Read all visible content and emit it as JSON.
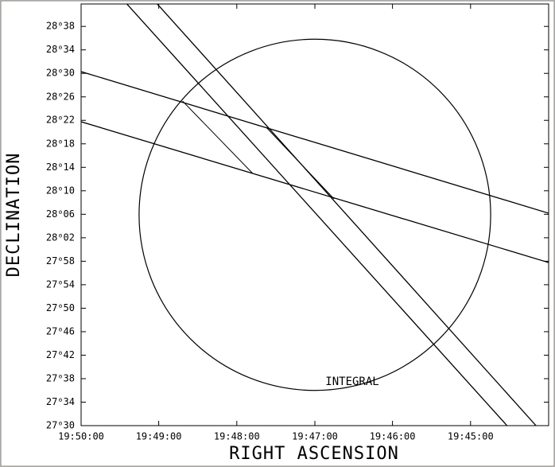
{
  "chart_data": {
    "type": "line",
    "xlabel": "RIGHT ASCENSION",
    "ylabel": "DECLINATION",
    "xlim": [
      19.8333,
      19.7333
    ],
    "ylim": [
      27.5,
      28.697
    ],
    "xticks": [
      {
        "value": 19.8333,
        "label": "19:50:00"
      },
      {
        "value": 19.8167,
        "label": "19:49:00"
      },
      {
        "value": 19.8,
        "label": "19:48:00"
      },
      {
        "value": 19.7833,
        "label": "19:47:00"
      },
      {
        "value": 19.7667,
        "label": "19:46:00"
      },
      {
        "value": 19.75,
        "label": "19:45:00"
      }
    ],
    "yticks": [
      {
        "value": 27.5,
        "label": "27⁰30"
      },
      {
        "value": 27.5667,
        "label": "27⁰34"
      },
      {
        "value": 27.6333,
        "label": "27⁰38"
      },
      {
        "value": 27.7,
        "label": "27⁰42"
      },
      {
        "value": 27.7667,
        "label": "27⁰46"
      },
      {
        "value": 27.8333,
        "label": "27⁰50"
      },
      {
        "value": 27.9,
        "label": "27⁰54"
      },
      {
        "value": 27.9667,
        "label": "27⁰58"
      },
      {
        "value": 28.0333,
        "label": "28⁰02"
      },
      {
        "value": 28.1,
        "label": "28⁰06"
      },
      {
        "value": 28.1667,
        "label": "28⁰10"
      },
      {
        "value": 28.2333,
        "label": "28⁰14"
      },
      {
        "value": 28.3,
        "label": "28⁰18"
      },
      {
        "value": 28.3667,
        "label": "28⁰22"
      },
      {
        "value": 28.4333,
        "label": "28⁰26"
      },
      {
        "value": 28.5,
        "label": "28⁰30"
      },
      {
        "value": 28.5667,
        "label": "28⁰34"
      },
      {
        "value": 28.6333,
        "label": "28⁰38"
      }
    ],
    "series": [
      {
        "color": "#000000",
        "x": [
          19.8235,
          19.7422
        ],
        "y": [
          28.6969,
          27.5
        ]
      },
      {
        "color": "#000000",
        "x": [
          19.817,
          19.736
        ],
        "y": [
          28.6969,
          27.5
        ]
      },
      {
        "color": "#000000",
        "x": [
          19.8333,
          19.7333
        ],
        "y": [
          28.505,
          28.103
        ]
      },
      {
        "color": "#000000",
        "x": [
          19.8333,
          19.7333
        ],
        "y": [
          28.3627,
          27.963
        ]
      },
      {
        "color": "#000000",
        "x": [
          19.8116,
          19.7966
        ],
        "y": [
          28.4214,
          28.2159
        ]
      },
      {
        "color": "#000000",
        "x": [
          19.7937,
          19.7792
        ],
        "y": [
          28.3469,
          28.1436
        ]
      }
    ],
    "circle": {
      "label": "INTEGRAL",
      "center_x": 19.7833,
      "center_y": 28.0985,
      "x_radius": 0.0376,
      "y_radius": 0.4985
    }
  }
}
